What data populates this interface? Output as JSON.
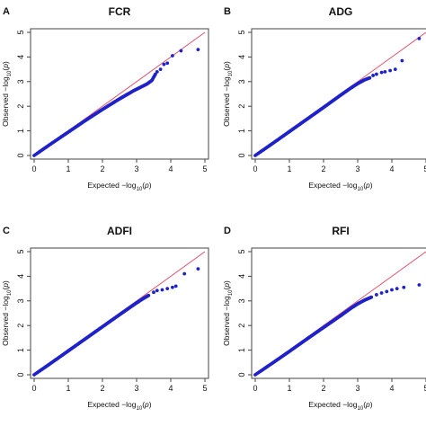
{
  "colors": {
    "points": "#1f22c8",
    "reference_line": "#e0506a",
    "axes": "#444444"
  },
  "chart_data": [
    {
      "type": "scatter",
      "panel_letter": "A",
      "title": "FCR",
      "xlabel": "Expected -log10(p)",
      "ylabel": "Observed -log10(p)",
      "xlim": [
        0,
        5
      ],
      "ylim": [
        0,
        5
      ],
      "x_ticks": [
        "0",
        "1",
        "2",
        "3",
        "4",
        "5"
      ],
      "y_ticks": [
        "0",
        "1",
        "2",
        "3",
        "4",
        "5"
      ],
      "reference_line": {
        "from": [
          0,
          0
        ],
        "to": [
          5,
          5
        ]
      },
      "curve_x": [
        0,
        0.5,
        1.0,
        1.5,
        2.0,
        2.5,
        2.9,
        3.1,
        3.3,
        3.45,
        3.5,
        3.55
      ],
      "curve_y": [
        0,
        0.48,
        0.95,
        1.42,
        1.87,
        2.3,
        2.62,
        2.76,
        2.9,
        3.05,
        3.18,
        3.3
      ],
      "tail_points": {
        "x": [
          3.6,
          3.7,
          3.8,
          3.9,
          4.05,
          4.3,
          4.8
        ],
        "y": [
          3.4,
          3.5,
          3.7,
          3.75,
          4.05,
          4.25,
          4.3
        ]
      }
    },
    {
      "type": "scatter",
      "panel_letter": "B",
      "title": "ADG",
      "xlabel": "Expected -log10(p)",
      "ylabel": "Observed -log10(p)",
      "xlim": [
        0,
        5
      ],
      "ylim": [
        0,
        5
      ],
      "x_ticks": [
        "0",
        "1",
        "2",
        "3",
        "4",
        "5"
      ],
      "y_ticks": [
        "0",
        "1",
        "2",
        "3",
        "4",
        "5"
      ],
      "reference_line": {
        "from": [
          0,
          0
        ],
        "to": [
          5,
          5
        ]
      },
      "curve_x": [
        0,
        0.5,
        1.0,
        1.5,
        2.0,
        2.5,
        2.8,
        3.0,
        3.2,
        3.35
      ],
      "curve_y": [
        0,
        0.48,
        0.97,
        1.46,
        1.95,
        2.45,
        2.74,
        2.92,
        3.07,
        3.15
      ],
      "tail_points": {
        "x": [
          3.45,
          3.55,
          3.7,
          3.8,
          3.95,
          4.1,
          4.3,
          4.8
        ],
        "y": [
          3.25,
          3.3,
          3.37,
          3.4,
          3.45,
          3.5,
          3.85,
          4.75
        ]
      }
    },
    {
      "type": "scatter",
      "panel_letter": "C",
      "title": "ADFI",
      "xlabel": "Expected -log10(p)",
      "ylabel": "Observed -log10(p)",
      "xlim": [
        0,
        5
      ],
      "ylim": [
        0,
        5
      ],
      "x_ticks": [
        "0",
        "1",
        "2",
        "3",
        "4",
        "5"
      ],
      "y_ticks": [
        "0",
        "1",
        "2",
        "3",
        "4",
        "5"
      ],
      "reference_line": {
        "from": [
          0,
          0
        ],
        "to": [
          5,
          5
        ]
      },
      "curve_x": [
        0,
        0.5,
        1.0,
        1.5,
        2.0,
        2.5,
        2.8,
        3.0,
        3.2,
        3.35
      ],
      "curve_y": [
        0,
        0.48,
        0.97,
        1.46,
        1.95,
        2.44,
        2.73,
        2.92,
        3.1,
        3.22
      ],
      "tail_points": {
        "x": [
          3.5,
          3.6,
          3.75,
          3.9,
          4.05,
          4.15,
          4.4,
          4.8
        ],
        "y": [
          3.35,
          3.42,
          3.45,
          3.5,
          3.55,
          3.6,
          4.1,
          4.3
        ]
      }
    },
    {
      "type": "scatter",
      "panel_letter": "D",
      "title": "RFI",
      "xlabel": "Expected -log10(p)",
      "ylabel": "Observed -log10(p)",
      "xlim": [
        0,
        5
      ],
      "ylim": [
        0,
        5
      ],
      "x_ticks": [
        "0",
        "1",
        "2",
        "3",
        "4",
        "5"
      ],
      "y_ticks": [
        "0",
        "1",
        "2",
        "3",
        "4",
        "5"
      ],
      "reference_line": {
        "from": [
          0,
          0
        ],
        "to": [
          5,
          5
        ]
      },
      "curve_x": [
        0,
        0.5,
        1.0,
        1.5,
        2.0,
        2.5,
        2.8,
        3.0,
        3.2,
        3.4
      ],
      "curve_y": [
        0,
        0.47,
        0.95,
        1.44,
        1.92,
        2.4,
        2.7,
        2.88,
        3.03,
        3.15
      ],
      "tail_points": {
        "x": [
          3.55,
          3.7,
          3.85,
          4.0,
          4.15,
          4.35,
          4.8
        ],
        "y": [
          3.25,
          3.32,
          3.38,
          3.45,
          3.5,
          3.55,
          3.65
        ]
      }
    }
  ]
}
